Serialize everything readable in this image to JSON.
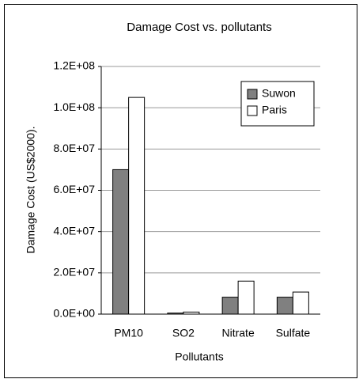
{
  "chart_data": {
    "type": "bar",
    "title": "Damage Cost vs. pollutants",
    "x_label": "Pollutants",
    "y_label": "Damage Cost (US$2000).",
    "categories": [
      "PM10",
      "SO2",
      "Nitrate",
      "Sulfate"
    ],
    "series": [
      {
        "name": "Suwon",
        "color": "#808080",
        "values": [
          70000000,
          500000,
          8200000,
          8200000
        ]
      },
      {
        "name": "Paris",
        "color": "#ffffff",
        "values": [
          105000000,
          1000000,
          16000000,
          10700000
        ]
      }
    ],
    "ylim": [
      0,
      120000000
    ],
    "yticks": [
      {
        "value": 0,
        "label": "0.0E+00"
      },
      {
        "value": 20000000,
        "label": "2.0E+07"
      },
      {
        "value": 40000000,
        "label": "4.0E+07"
      },
      {
        "value": 60000000,
        "label": "6.0E+07"
      },
      {
        "value": 80000000,
        "label": "8.0E+07"
      },
      {
        "value": 100000000,
        "label": "1.0E+08"
      },
      {
        "value": 120000000,
        "label": "1.2E+08"
      }
    ],
    "grid": true,
    "legend": "upper right"
  }
}
